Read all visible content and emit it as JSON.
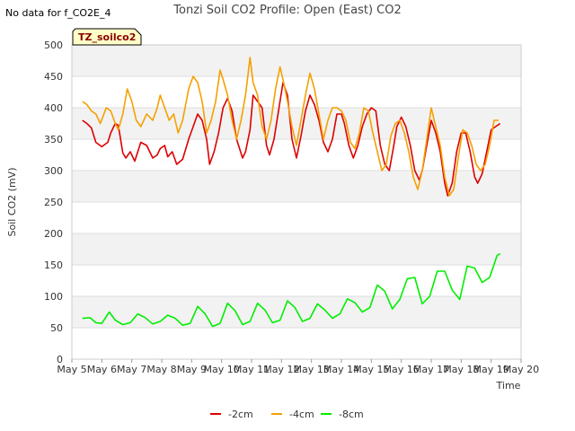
{
  "no_data_note": "No data for f_CO2E_4",
  "chart_data": {
    "type": "line",
    "title": "Tonzi Soil CO2 Profile: Open (East) CO2",
    "tag": "TZ_soilco2",
    "xlabel": "Time",
    "ylabel": "Soil CO2 (mV)",
    "xlim": [
      5,
      20
    ],
    "ylim": [
      0,
      500
    ],
    "yticks": [
      0,
      50,
      100,
      150,
      200,
      250,
      300,
      350,
      400,
      450,
      500
    ],
    "xtick_values": [
      5,
      6,
      7,
      8,
      9,
      10,
      11,
      12,
      13,
      14,
      15,
      16,
      17,
      18,
      19,
      20
    ],
    "xtick_labels": [
      "May 5",
      "May 6",
      "May 7",
      "May 8",
      "May 9",
      "May 10",
      "May 11",
      "May 12",
      "May 13",
      "May 14",
      "May 15",
      "May 16",
      "May 17",
      "May 18",
      "May 19",
      "May 20"
    ],
    "legend_position": "bottom-center",
    "series": [
      {
        "name": "-2cm",
        "color": "#dd0000",
        "x": [
          5.35,
          5.5,
          5.65,
          5.8,
          6.0,
          6.2,
          6.3,
          6.45,
          6.55,
          6.7,
          6.8,
          6.95,
          7.1,
          7.3,
          7.5,
          7.7,
          7.85,
          7.95,
          8.1,
          8.2,
          8.35,
          8.5,
          8.7,
          8.9,
          9.05,
          9.2,
          9.35,
          9.5,
          9.6,
          9.75,
          9.9,
          10.05,
          10.2,
          10.35,
          10.5,
          10.7,
          10.8,
          10.95,
          11.05,
          11.2,
          11.35,
          11.5,
          11.6,
          11.75,
          11.9,
          12.05,
          12.2,
          12.35,
          12.5,
          12.65,
          12.8,
          12.95,
          13.1,
          13.25,
          13.4,
          13.55,
          13.7,
          13.85,
          14.0,
          14.1,
          14.25,
          14.4,
          14.55,
          14.7,
          14.85,
          15.0,
          15.15,
          15.3,
          15.45,
          15.6,
          15.75,
          15.85,
          16.0,
          16.15,
          16.3,
          16.45,
          16.6,
          16.7,
          16.85,
          17.0,
          17.15,
          17.3,
          17.45,
          17.55,
          17.7,
          17.85,
          18.0,
          18.15,
          18.3,
          18.45,
          18.55,
          18.7,
          18.85,
          19.0,
          19.15,
          19.3
        ],
        "values": [
          380,
          375,
          368,
          345,
          338,
          345,
          360,
          375,
          372,
          328,
          320,
          330,
          315,
          345,
          340,
          320,
          325,
          335,
          340,
          322,
          330,
          310,
          318,
          350,
          370,
          390,
          380,
          350,
          310,
          330,
          360,
          400,
          415,
          395,
          350,
          320,
          330,
          365,
          420,
          410,
          400,
          340,
          325,
          350,
          395,
          440,
          420,
          350,
          320,
          355,
          395,
          420,
          405,
          380,
          345,
          330,
          350,
          390,
          390,
          375,
          340,
          320,
          340,
          370,
          390,
          400,
          395,
          340,
          310,
          300,
          340,
          370,
          385,
          370,
          340,
          300,
          285,
          300,
          340,
          380,
          360,
          330,
          280,
          260,
          280,
          330,
          360,
          360,
          330,
          290,
          280,
          295,
          330,
          365,
          370,
          375
        ]
      },
      {
        "name": "-4cm",
        "color": "#f5a000",
        "x": [
          5.35,
          5.5,
          5.65,
          5.8,
          5.95,
          6.15,
          6.3,
          6.45,
          6.55,
          6.7,
          6.85,
          7.0,
          7.15,
          7.3,
          7.5,
          7.7,
          7.85,
          7.95,
          8.1,
          8.25,
          8.4,
          8.55,
          8.7,
          8.9,
          9.05,
          9.2,
          9.35,
          9.5,
          9.65,
          9.8,
          9.95,
          10.05,
          10.2,
          10.35,
          10.5,
          10.65,
          10.8,
          10.95,
          11.05,
          11.2,
          11.35,
          11.5,
          11.65,
          11.8,
          11.95,
          12.05,
          12.2,
          12.35,
          12.5,
          12.65,
          12.8,
          12.95,
          13.1,
          13.25,
          13.4,
          13.55,
          13.7,
          13.85,
          14.0,
          14.15,
          14.3,
          14.45,
          14.6,
          14.75,
          14.9,
          15.05,
          15.2,
          15.35,
          15.5,
          15.65,
          15.8,
          15.95,
          16.1,
          16.25,
          16.4,
          16.55,
          16.7,
          16.85,
          17.0,
          17.15,
          17.3,
          17.45,
          17.6,
          17.75,
          17.9,
          18.05,
          18.2,
          18.35,
          18.5,
          18.65,
          18.8,
          18.95,
          19.1,
          19.25
        ],
        "values": [
          410,
          405,
          395,
          390,
          375,
          400,
          395,
          375,
          365,
          390,
          430,
          410,
          380,
          370,
          390,
          380,
          400,
          420,
          400,
          380,
          390,
          360,
          380,
          430,
          450,
          440,
          410,
          360,
          380,
          410,
          460,
          445,
          420,
          380,
          350,
          380,
          420,
          480,
          440,
          420,
          370,
          350,
          380,
          430,
          465,
          445,
          410,
          370,
          340,
          380,
          420,
          455,
          430,
          390,
          350,
          380,
          400,
          400,
          395,
          380,
          345,
          335,
          360,
          400,
          395,
          360,
          330,
          300,
          310,
          355,
          375,
          380,
          360,
          330,
          290,
          270,
          300,
          350,
          400,
          370,
          340,
          290,
          260,
          270,
          320,
          365,
          360,
          340,
          310,
          300,
          310,
          340,
          380,
          380
        ]
      },
      {
        "name": "-8cm",
        "color": "#00ee00",
        "x": [
          5.35,
          5.6,
          5.8,
          6.0,
          6.25,
          6.45,
          6.7,
          6.95,
          7.2,
          7.45,
          7.7,
          7.95,
          8.2,
          8.45,
          8.7,
          8.95,
          9.2,
          9.45,
          9.7,
          9.95,
          10.2,
          10.45,
          10.7,
          10.95,
          11.2,
          11.45,
          11.7,
          11.95,
          12.2,
          12.45,
          12.7,
          12.95,
          13.2,
          13.45,
          13.7,
          13.95,
          14.2,
          14.45,
          14.7,
          14.95,
          15.2,
          15.45,
          15.7,
          15.95,
          16.2,
          16.45,
          16.7,
          16.95,
          17.2,
          17.45,
          17.7,
          17.95,
          18.2,
          18.45,
          18.7,
          18.95,
          19.2,
          19.3
        ],
        "values": [
          65,
          66,
          58,
          57,
          75,
          62,
          55,
          58,
          72,
          66,
          56,
          60,
          70,
          65,
          54,
          57,
          84,
          72,
          52,
          57,
          89,
          77,
          55,
          60,
          89,
          78,
          58,
          62,
          93,
          82,
          60,
          65,
          88,
          78,
          65,
          72,
          96,
          90,
          75,
          82,
          118,
          108,
          80,
          95,
          128,
          130,
          88,
          100,
          140,
          140,
          110,
          95,
          148,
          145,
          122,
          130,
          165,
          168
        ]
      }
    ]
  }
}
